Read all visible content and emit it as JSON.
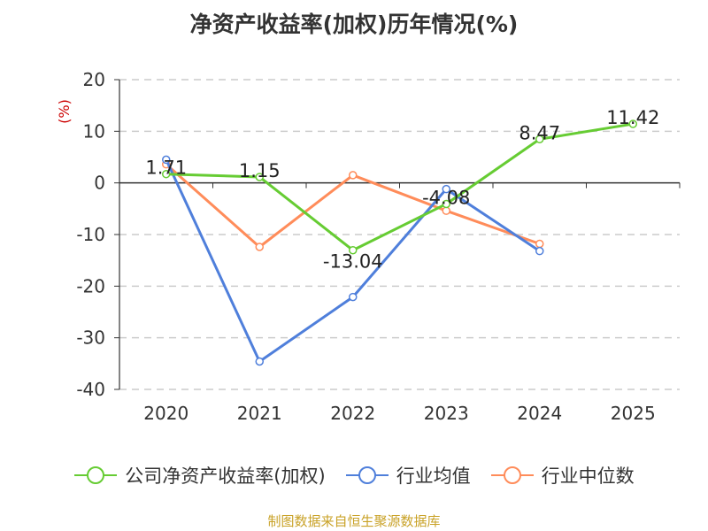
{
  "chart_data": {
    "type": "line",
    "title": "净资产收益率(加权)历年情况(%)",
    "ylabel": "(%)",
    "xlabel": "",
    "ylim": [
      -40,
      20
    ],
    "yticks": [
      20,
      10,
      0,
      -10,
      -20,
      -30,
      -40
    ],
    "categories": [
      "2020",
      "2021",
      "2022",
      "2023",
      "2024",
      "2025"
    ],
    "grid": true,
    "legend_position": "bottom",
    "series": [
      {
        "name": "公司净资产收益率(加权)",
        "color": "#66cc33",
        "values": [
          1.71,
          1.15,
          -13.04,
          -4.08,
          8.47,
          11.42
        ],
        "labels": [
          "1.71",
          "1.15",
          "-13.04",
          "-4.08",
          "8.47",
          "11.42"
        ]
      },
      {
        "name": "行业均值",
        "color": "#4f7fdb",
        "values": [
          4.5,
          -34.6,
          -22.1,
          -1.2,
          -13.2,
          null
        ]
      },
      {
        "name": "行业中位数",
        "color": "#ff8c5a",
        "values": [
          3.6,
          -12.4,
          1.5,
          -5.4,
          -11.8,
          null
        ]
      }
    ]
  },
  "source": "制图数据来自恒生聚源数据库"
}
